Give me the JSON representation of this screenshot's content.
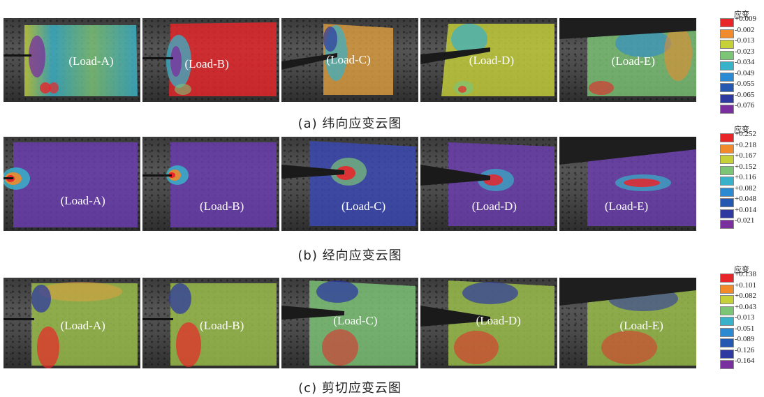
{
  "rows": [
    {
      "caption": "(a) 纬向应变云图",
      "labels": [
        "(Load-A)",
        "(Load-B)",
        "(Load-C)",
        "(Load-D)",
        "(Load-E)"
      ],
      "legend": {
        "title": "应变",
        "values": [
          "+0.009",
          "-0.002",
          "-0.013",
          "-0.023",
          "-0.034",
          "-0.049",
          "-0.055",
          "-0.065",
          "-0.076"
        ],
        "colors": [
          "#e8262a",
          "#f08a2a",
          "#c6d13a",
          "#7cc576",
          "#38b1c9",
          "#2b8ad1",
          "#2558b0",
          "#2e3aa0",
          "#7a2f9e"
        ]
      }
    },
    {
      "caption": "(b) 经向应变云图",
      "labels": [
        "(Load-A)",
        "(Load-B)",
        "(Load-C)",
        "(Load-D)",
        "(Load-E)"
      ],
      "legend": {
        "title": "应变",
        "values": [
          "+0.252",
          "+0.218",
          "+0.167",
          "+0.152",
          "+0.116",
          "+0.082",
          "+0.048",
          "+0.014",
          "-0.021"
        ],
        "colors": [
          "#e8262a",
          "#f08a2a",
          "#c6d13a",
          "#7cc576",
          "#38b1c9",
          "#2b8ad1",
          "#2558b0",
          "#2e3aa0",
          "#7a2f9e"
        ]
      }
    },
    {
      "caption": "(c) 剪切应变云图",
      "labels": [
        "(Load-A)",
        "(Load-B)",
        "(Load-C)",
        "(Load-D)",
        "(Load-E)"
      ],
      "legend": {
        "title": "应变",
        "values": [
          "+0.138",
          "+0.101",
          "+0.082",
          "+0.043",
          "-0.013",
          "-0.051",
          "-0.089",
          "-0.126",
          "-0.164"
        ],
        "colors": [
          "#e8262a",
          "#f08a2a",
          "#c6d13a",
          "#7cc576",
          "#38b1c9",
          "#2b8ad1",
          "#2558b0",
          "#2e3aa0",
          "#7a2f9e"
        ]
      }
    }
  ]
}
